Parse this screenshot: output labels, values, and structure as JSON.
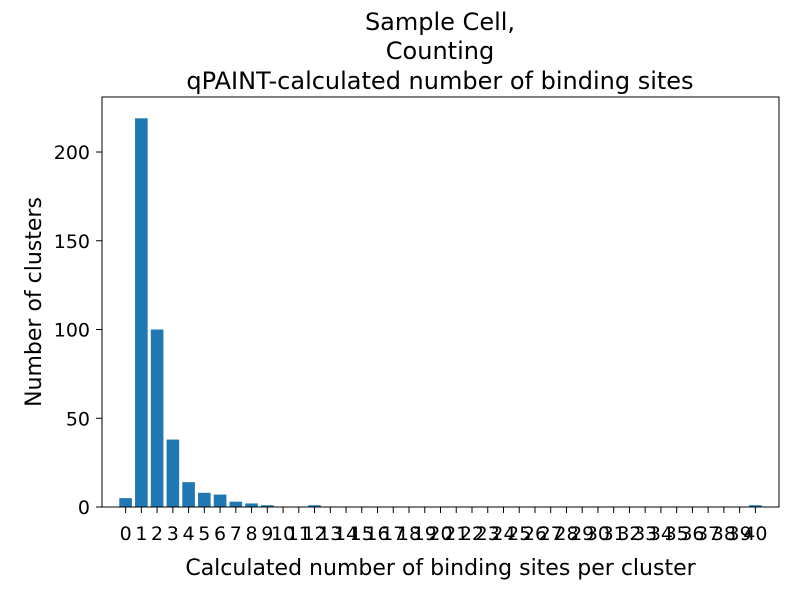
{
  "chart_data": {
    "type": "bar",
    "title_lines": [
      "Sample Cell,",
      "Counting",
      "qPAINT-calculated number of binding sites"
    ],
    "xlabel": "Calculated number of binding sites per cluster",
    "ylabel": "Number of clusters",
    "categories": [
      "0",
      "1",
      "2",
      "3",
      "4",
      "5",
      "6",
      "7",
      "8",
      "9",
      "10",
      "11",
      "12",
      "13",
      "14",
      "15",
      "16",
      "17",
      "18",
      "19",
      "20",
      "21",
      "22",
      "23",
      "24",
      "25",
      "26",
      "27",
      "28",
      "29",
      "30",
      "31",
      "32",
      "33",
      "34",
      "35",
      "36",
      "37",
      "38",
      "39",
      "40"
    ],
    "values": [
      5,
      219,
      100,
      38,
      14,
      8,
      7,
      3,
      2,
      1,
      0,
      0,
      1,
      0,
      0,
      0,
      0,
      0,
      0,
      0,
      0,
      0,
      0,
      0,
      0,
      0,
      0,
      0,
      0,
      0,
      0,
      0,
      0,
      0,
      0,
      0,
      0,
      0,
      0,
      0,
      1
    ],
    "ylim": [
      0,
      231
    ],
    "yticks": [
      0,
      50,
      100,
      150,
      200
    ],
    "bar_color": "#1f77b4",
    "grid": false,
    "legend": "none"
  }
}
